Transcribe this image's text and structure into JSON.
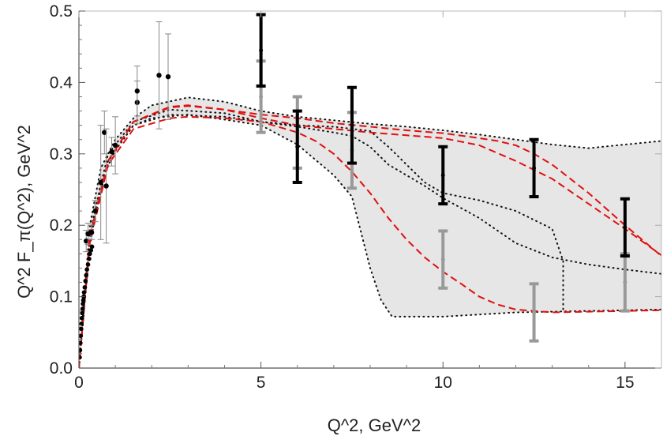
{
  "chart_data": {
    "type": "scatter",
    "title": "",
    "xlabel": "Q^2, GeV^2",
    "ylabel": "Q^2 F_π(Q^2), GeV^2",
    "xlim": [
      0,
      16
    ],
    "ylim": [
      0,
      0.5
    ],
    "xticks": [
      0,
      5,
      10,
      15
    ],
    "yticks": [
      0.0,
      0.1,
      0.2,
      0.3,
      0.4,
      0.5
    ],
    "xtick_labels": [
      "0",
      "5",
      "10",
      "15"
    ],
    "ytick_labels": [
      "0.0",
      "0.1",
      "0.2",
      "0.3",
      "0.4",
      "0.5"
    ],
    "grid": false,
    "legend": "none",
    "colors": {
      "band_fill": "#e6e6e6",
      "band_edge": "#111111",
      "red_curve": "#e01010",
      "black_points": "#000000",
      "thin_error": "#888888",
      "gray_projection": "#999999"
    },
    "low_q2_data": [
      {
        "x": 0.02,
        "y": 0.015
      },
      {
        "x": 0.03,
        "y": 0.025
      },
      {
        "x": 0.04,
        "y": 0.035
      },
      {
        "x": 0.05,
        "y": 0.045
      },
      {
        "x": 0.06,
        "y": 0.055
      },
      {
        "x": 0.07,
        "y": 0.062
      },
      {
        "x": 0.08,
        "y": 0.07
      },
      {
        "x": 0.09,
        "y": 0.077
      },
      {
        "x": 0.1,
        "y": 0.083
      },
      {
        "x": 0.11,
        "y": 0.09
      },
      {
        "x": 0.12,
        "y": 0.095
      },
      {
        "x": 0.13,
        "y": 0.1
      },
      {
        "x": 0.14,
        "y": 0.106
      },
      {
        "x": 0.16,
        "y": 0.113
      },
      {
        "x": 0.18,
        "y": 0.122
      },
      {
        "x": 0.2,
        "y": 0.13
      },
      {
        "x": 0.22,
        "y": 0.138
      },
      {
        "x": 0.25,
        "y": 0.145
      },
      {
        "x": 0.28,
        "y": 0.153
      },
      {
        "x": 0.3,
        "y": 0.16
      },
      {
        "x": 0.33,
        "y": 0.165
      },
      {
        "x": 0.36,
        "y": 0.17
      }
    ],
    "thin_error_data": [
      {
        "x": 0.2,
        "y": 0.178,
        "err": 0.015
      },
      {
        "x": 0.25,
        "y": 0.188,
        "err": 0.015
      },
      {
        "x": 0.35,
        "y": 0.19,
        "err": 0.01
      },
      {
        "x": 0.45,
        "y": 0.22,
        "err": 0.015
      },
      {
        "x": 0.6,
        "y": 0.26,
        "err": 0.08
      },
      {
        "x": 0.7,
        "y": 0.33,
        "err": 0.03
      },
      {
        "x": 0.75,
        "y": 0.255,
        "err": 0.08
      },
      {
        "x": 0.9,
        "y": 0.303,
        "err": 0.02
      },
      {
        "x": 1.0,
        "y": 0.312,
        "err": 0.04
      },
      {
        "x": 1.6,
        "y": 0.372,
        "err": 0.03
      },
      {
        "x": 1.6,
        "y": 0.388,
        "err": 0.035
      },
      {
        "x": 2.2,
        "y": 0.41,
        "err": 0.075
      },
      {
        "x": 2.45,
        "y": 0.408,
        "err": 0.06
      }
    ],
    "projection_black": [
      {
        "x": 5.0,
        "y": 0.445,
        "err": 0.05
      },
      {
        "x": 6.0,
        "y": 0.31,
        "err": 0.05
      },
      {
        "x": 7.5,
        "y": 0.34,
        "err": 0.053
      },
      {
        "x": 10.0,
        "y": 0.27,
        "err": 0.04
      },
      {
        "x": 12.5,
        "y": 0.28,
        "err": 0.04
      },
      {
        "x": 15.0,
        "y": 0.197,
        "err": 0.04
      }
    ],
    "projection_gray": [
      {
        "x": 5.0,
        "y": 0.38,
        "err": 0.05
      },
      {
        "x": 6.0,
        "y": 0.33,
        "err": 0.05
      },
      {
        "x": 7.5,
        "y": 0.305,
        "err": 0.053
      },
      {
        "x": 10.0,
        "y": 0.152,
        "err": 0.04
      },
      {
        "x": 12.5,
        "y": 0.078,
        "err": 0.04
      },
      {
        "x": 15.0,
        "y": 0.12,
        "err": 0.04
      }
    ],
    "band": {
      "upper": [
        [
          0,
          0
        ],
        [
          0.3,
          0.2
        ],
        [
          0.6,
          0.28
        ],
        [
          1.0,
          0.32
        ],
        [
          1.5,
          0.35
        ],
        [
          2.0,
          0.368
        ],
        [
          3.0,
          0.379
        ],
        [
          4.0,
          0.373
        ],
        [
          5.0,
          0.36
        ],
        [
          6.0,
          0.352
        ],
        [
          7.0,
          0.347
        ],
        [
          8.0,
          0.342
        ],
        [
          9.0,
          0.338
        ],
        [
          10.0,
          0.333
        ],
        [
          11.0,
          0.327
        ],
        [
          12.0,
          0.32
        ],
        [
          13.0,
          0.313
        ],
        [
          14.0,
          0.308
        ],
        [
          15.0,
          0.313
        ],
        [
          16.0,
          0.318
        ]
      ],
      "lower": [
        [
          0,
          0
        ],
        [
          0.3,
          0.17
        ],
        [
          0.6,
          0.26
        ],
        [
          1.0,
          0.305
        ],
        [
          1.5,
          0.34
        ],
        [
          2.0,
          0.35
        ],
        [
          3.0,
          0.355
        ],
        [
          4.0,
          0.348
        ],
        [
          5.0,
          0.34
        ],
        [
          6.0,
          0.313
        ],
        [
          7.0,
          0.27
        ],
        [
          7.5,
          0.24
        ],
        [
          8.0,
          0.14
        ],
        [
          8.3,
          0.095
        ],
        [
          8.6,
          0.072
        ],
        [
          10.0,
          0.072
        ],
        [
          12.0,
          0.078
        ],
        [
          14.0,
          0.08
        ],
        [
          16.0,
          0.082
        ]
      ]
    },
    "dotted_curves": [
      [
        [
          0,
          0
        ],
        [
          0.3,
          0.19
        ],
        [
          0.8,
          0.3
        ],
        [
          1.5,
          0.345
        ],
        [
          2.5,
          0.362
        ],
        [
          4.0,
          0.357
        ],
        [
          5.0,
          0.345
        ],
        [
          6.0,
          0.34
        ],
        [
          7.0,
          0.338
        ],
        [
          8.0,
          0.332
        ],
        [
          8.5,
          0.31
        ],
        [
          9.0,
          0.285
        ],
        [
          9.5,
          0.26
        ],
        [
          10.0,
          0.245
        ],
        [
          11.0,
          0.235
        ],
        [
          12.0,
          0.22
        ],
        [
          13.0,
          0.195
        ],
        [
          13.3,
          0.15
        ],
        [
          13.3,
          0.08
        ]
      ],
      [
        [
          0,
          0
        ],
        [
          0.3,
          0.18
        ],
        [
          0.8,
          0.29
        ],
        [
          1.5,
          0.34
        ],
        [
          2.5,
          0.355
        ],
        [
          4.0,
          0.352
        ],
        [
          5.0,
          0.345
        ],
        [
          6.0,
          0.338
        ],
        [
          7.0,
          0.33
        ],
        [
          7.5,
          0.325
        ],
        [
          8.0,
          0.31
        ],
        [
          8.5,
          0.285
        ],
        [
          9.0,
          0.27
        ],
        [
          9.5,
          0.255
        ],
        [
          10.0,
          0.238
        ],
        [
          11.0,
          0.21
        ],
        [
          12.0,
          0.175
        ],
        [
          13.0,
          0.155
        ],
        [
          14.0,
          0.145
        ],
        [
          15.0,
          0.138
        ],
        [
          16.0,
          0.132
        ]
      ]
    ],
    "red_curves": [
      [
        [
          0,
          0
        ],
        [
          0.3,
          0.18
        ],
        [
          0.8,
          0.29
        ],
        [
          1.5,
          0.345
        ],
        [
          2.5,
          0.366
        ],
        [
          3.0,
          0.368
        ],
        [
          4.0,
          0.362
        ],
        [
          5.0,
          0.35
        ],
        [
          6.0,
          0.34
        ],
        [
          7.0,
          0.335
        ],
        [
          8.0,
          0.33
        ],
        [
          9.0,
          0.326
        ],
        [
          10.0,
          0.322
        ],
        [
          11.0,
          0.312
        ],
        [
          12.0,
          0.29
        ],
        [
          13.0,
          0.265
        ],
        [
          14.0,
          0.23
        ],
        [
          15.0,
          0.195
        ],
        [
          16.0,
          0.158
        ]
      ],
      [
        [
          0,
          0
        ],
        [
          0.3,
          0.185
        ],
        [
          0.8,
          0.29
        ],
        [
          1.5,
          0.345
        ],
        [
          2.5,
          0.365
        ],
        [
          3.0,
          0.367
        ],
        [
          4.0,
          0.362
        ],
        [
          5.0,
          0.355
        ],
        [
          6.0,
          0.35
        ],
        [
          7.0,
          0.343
        ],
        [
          8.0,
          0.338
        ],
        [
          9.0,
          0.333
        ],
        [
          10.0,
          0.329
        ],
        [
          11.0,
          0.322
        ],
        [
          11.5,
          0.318
        ],
        [
          12.0,
          0.312
        ],
        [
          12.5,
          0.3
        ],
        [
          13.0,
          0.285
        ],
        [
          14.0,
          0.245
        ],
        [
          15.0,
          0.2
        ],
        [
          16.0,
          0.157
        ]
      ],
      [
        [
          0,
          0
        ],
        [
          0.3,
          0.175
        ],
        [
          0.8,
          0.285
        ],
        [
          1.5,
          0.335
        ],
        [
          2.5,
          0.35
        ],
        [
          3.0,
          0.352
        ],
        [
          4.0,
          0.35
        ],
        [
          5.0,
          0.345
        ],
        [
          6.0,
          0.33
        ],
        [
          6.5,
          0.318
        ],
        [
          7.0,
          0.3
        ],
        [
          7.5,
          0.275
        ],
        [
          8.0,
          0.245
        ],
        [
          8.5,
          0.21
        ],
        [
          9.0,
          0.18
        ],
        [
          9.5,
          0.155
        ],
        [
          10.0,
          0.135
        ],
        [
          10.5,
          0.118
        ],
        [
          11.0,
          0.1
        ],
        [
          11.5,
          0.089
        ],
        [
          12.0,
          0.082
        ],
        [
          13.0,
          0.078
        ],
        [
          14.0,
          0.079
        ],
        [
          15.0,
          0.08
        ],
        [
          16.0,
          0.081
        ]
      ]
    ]
  }
}
